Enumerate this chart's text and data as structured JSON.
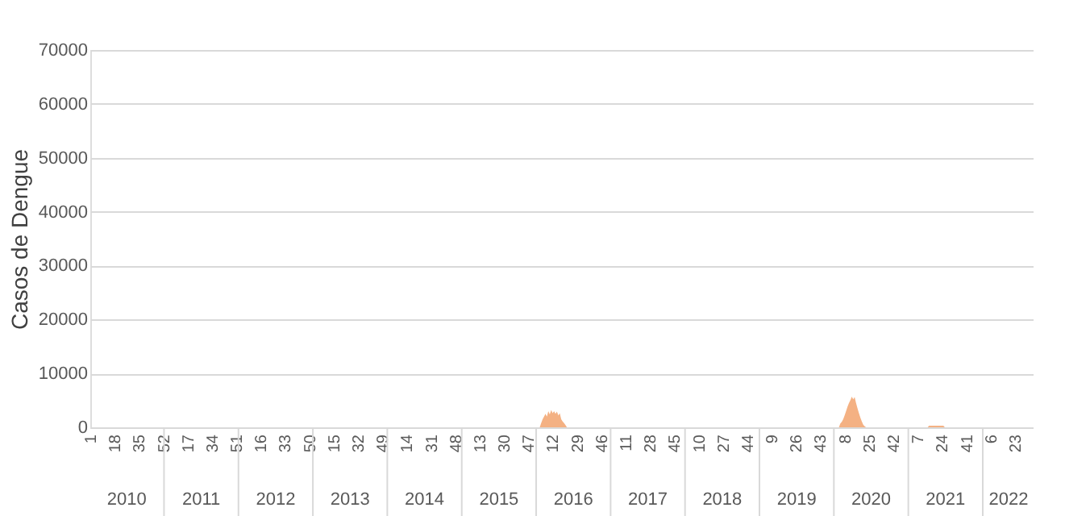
{
  "chart_data": {
    "type": "area",
    "ylabel": "Casos de Dengue",
    "categories": [
      "1",
      null,
      null,
      null,
      null,
      null,
      null,
      null,
      null,
      null,
      null,
      null,
      null,
      null,
      null,
      null,
      null,
      "18",
      null,
      null,
      null,
      null,
      null,
      null,
      null,
      null,
      null,
      null,
      null,
      null,
      null,
      null,
      null,
      null,
      "35",
      null,
      null,
      null,
      null,
      null,
      null,
      null,
      null,
      null,
      null,
      null,
      null,
      null,
      null,
      null,
      null,
      "52",
      null,
      null,
      null,
      null,
      null,
      null,
      null,
      null,
      null,
      null,
      null,
      null,
      null,
      null,
      null,
      null,
      "17",
      null,
      null,
      null,
      null,
      null,
      null,
      null,
      null,
      null,
      null,
      null,
      null,
      null,
      null,
      null,
      null,
      "34",
      null,
      null,
      null,
      null,
      null,
      null,
      null,
      null,
      null,
      null,
      null,
      null,
      null,
      null,
      null,
      null,
      "51",
      null,
      null,
      null,
      null,
      null,
      null,
      null,
      null,
      null,
      null,
      null,
      null,
      null,
      null,
      null,
      null,
      "16",
      null,
      null,
      null,
      null,
      null,
      null,
      null,
      null,
      null,
      null,
      null,
      null,
      null,
      null,
      null,
      null,
      "33",
      null,
      null,
      null,
      null,
      null,
      null,
      null,
      null,
      null,
      null,
      null,
      null,
      null,
      null,
      null,
      null,
      "50",
      null,
      null,
      null,
      null,
      null,
      null,
      null,
      null,
      null,
      null,
      null,
      null,
      null,
      null,
      null,
      null,
      "15",
      null,
      null,
      null,
      null,
      null,
      null,
      null,
      null,
      null,
      null,
      null,
      null,
      null,
      null,
      null,
      null,
      "32",
      null,
      null,
      null,
      null,
      null,
      null,
      null,
      null,
      null,
      null,
      null,
      null,
      null,
      null,
      null,
      null,
      "49",
      null,
      null,
      null,
      null,
      null,
      null,
      null,
      null,
      null,
      null,
      null,
      null,
      null,
      null,
      null,
      null,
      "14",
      null,
      null,
      null,
      null,
      null,
      null,
      null,
      null,
      null,
      null,
      null,
      null,
      null,
      null,
      null,
      null,
      "31",
      null,
      null,
      null,
      null,
      null,
      null,
      null,
      null,
      null,
      null,
      null,
      null,
      null,
      null,
      null,
      null,
      "48",
      null,
      null,
      null,
      null,
      null,
      null,
      null,
      null,
      null,
      null,
      null,
      null,
      null,
      null,
      null,
      null,
      "13",
      null,
      null,
      null,
      null,
      null,
      null,
      null,
      null,
      null,
      null,
      null,
      null,
      null,
      null,
      null,
      null,
      "30",
      null,
      null,
      null,
      null,
      null,
      null,
      null,
      null,
      null,
      null,
      null,
      null,
      null,
      null,
      null,
      null,
      "47",
      null,
      null,
      null,
      null,
      null,
      null,
      null,
      null,
      null,
      null,
      null,
      null,
      null,
      null,
      null,
      null,
      "12",
      null,
      null,
      null,
      null,
      null,
      null,
      null,
      null,
      null,
      null,
      null,
      null,
      null,
      null,
      null,
      null,
      "29",
      null,
      null,
      null,
      null,
      null,
      null,
      null,
      null,
      null,
      null,
      null,
      null,
      null,
      null,
      null,
      null,
      "46",
      null,
      null,
      null,
      null,
      null,
      null,
      null,
      null,
      null,
      null,
      null,
      null,
      null,
      null,
      null,
      null,
      "11",
      null,
      null,
      null,
      null,
      null,
      null,
      null,
      null,
      null,
      null,
      null,
      null,
      null,
      null,
      null,
      null,
      "28",
      null,
      null,
      null,
      null,
      null,
      null,
      null,
      null,
      null,
      null,
      null,
      null,
      null,
      null,
      null,
      null,
      "45",
      null,
      null,
      null,
      null,
      null,
      null,
      null,
      null,
      null,
      null,
      null,
      null,
      null,
      null,
      null,
      null,
      "10",
      null,
      null,
      null,
      null,
      null,
      null,
      null,
      null,
      null,
      null,
      null,
      null,
      null,
      null,
      null,
      null,
      "27",
      null,
      null,
      null,
      null,
      null,
      null,
      null,
      null,
      null,
      null,
      null,
      null,
      null,
      null,
      null,
      null,
      "44",
      null,
      null,
      null,
      null,
      null,
      null,
      null,
      null,
      null,
      null,
      null,
      null,
      null,
      null,
      null,
      null,
      "9",
      null,
      null,
      null,
      null,
      null,
      null,
      null,
      null,
      null,
      null,
      null,
      null,
      null,
      null,
      null,
      null,
      "26",
      null,
      null,
      null,
      null,
      null,
      null,
      null,
      null,
      null,
      null,
      null,
      null,
      null,
      null,
      null,
      null,
      "43",
      null,
      null,
      null,
      null,
      null,
      null,
      null,
      null,
      null,
      null,
      null,
      null,
      null,
      null,
      null,
      null,
      "8",
      null,
      null,
      null,
      null,
      null,
      null,
      null,
      null,
      null,
      null,
      null,
      null,
      null,
      null,
      null,
      null,
      "25",
      null,
      null,
      null,
      null,
      null,
      null,
      null,
      null,
      null,
      null,
      null,
      null,
      null,
      null,
      null,
      null,
      "42",
      null,
      null,
      null,
      null,
      null,
      null,
      null,
      null,
      null,
      null,
      null,
      null,
      null,
      null,
      null,
      null,
      "7",
      null,
      null,
      null,
      null,
      null,
      null,
      null,
      null,
      null,
      null,
      null,
      null,
      null,
      null,
      null,
      null,
      "24",
      null,
      null,
      null,
      null,
      null,
      null,
      null,
      null,
      null,
      null,
      null,
      null,
      null,
      null,
      null,
      null,
      "41",
      null,
      null,
      null,
      null,
      null,
      null,
      null,
      null,
      null,
      null,
      null,
      null,
      null,
      null,
      null,
      null,
      "6",
      null,
      null,
      null,
      null,
      null,
      null,
      null,
      null,
      null,
      null,
      null,
      null,
      null,
      null,
      null,
      null,
      "23",
      null,
      null,
      null,
      null,
      null,
      null,
      null,
      null,
      null,
      null,
      null,
      null,
      null
    ],
    "series": [
      {
        "color": "#f4b183",
        "values": [
          0,
          0,
          0,
          0,
          0,
          0,
          0,
          0,
          0,
          0,
          0,
          0,
          0,
          0,
          0,
          0,
          0,
          0,
          0,
          0,
          0,
          0,
          0,
          0,
          0,
          0,
          0,
          0,
          0,
          0,
          0,
          0,
          0,
          0,
          0,
          0,
          0,
          0,
          0,
          0,
          0,
          0,
          0,
          0,
          0,
          0,
          0,
          0,
          0,
          0,
          0,
          0,
          0,
          0,
          0,
          0,
          0,
          0,
          0,
          0,
          0,
          0,
          0,
          0,
          0,
          0,
          0,
          0,
          0,
          0,
          0,
          0,
          0,
          0,
          0,
          0,
          0,
          0,
          0,
          0,
          0,
          0,
          0,
          0,
          0,
          0,
          0,
          0,
          0,
          0,
          0,
          0,
          0,
          0,
          0,
          0,
          0,
          0,
          0,
          0,
          0,
          0,
          0,
          0,
          0,
          0,
          0,
          0,
          0,
          0,
          0,
          0,
          0,
          0,
          0,
          0,
          0,
          0,
          0,
          0,
          0,
          0,
          0,
          0,
          0,
          0,
          0,
          0,
          0,
          0,
          0,
          0,
          0,
          0,
          0,
          0,
          0,
          0,
          0,
          0,
          0,
          0,
          0,
          0,
          0,
          0,
          0,
          0,
          0,
          0,
          0,
          0,
          0,
          0,
          0,
          0,
          0,
          0,
          0,
          0,
          0,
          0,
          0,
          0,
          0,
          0,
          0,
          0,
          0,
          0,
          0,
          0,
          0,
          0,
          0,
          0,
          0,
          0,
          0,
          0,
          0,
          0,
          0,
          0,
          0,
          0,
          0,
          0,
          0,
          0,
          0,
          0,
          0,
          0,
          0,
          0,
          0,
          0,
          0,
          0,
          0,
          0,
          0,
          0,
          0,
          0,
          0,
          0,
          0,
          0,
          0,
          0,
          0,
          0,
          0,
          0,
          0,
          0,
          0,
          0,
          0,
          0,
          0,
          0,
          0,
          0,
          0,
          0,
          0,
          0,
          0,
          0,
          0,
          0,
          0,
          0,
          0,
          0,
          0,
          0,
          0,
          0,
          0,
          0,
          0,
          0,
          0,
          0,
          0,
          0,
          0,
          0,
          0,
          0,
          0,
          0,
          0,
          0,
          0,
          0,
          0,
          0,
          0,
          0,
          0,
          0,
          0,
          0,
          0,
          0,
          0,
          0,
          0,
          0,
          0,
          0,
          0,
          0,
          0,
          0,
          0,
          0,
          0,
          0,
          0,
          0,
          0,
          0,
          0,
          0,
          0,
          0,
          0,
          0,
          0,
          0,
          0,
          0,
          0,
          0,
          0,
          0,
          0,
          0,
          0,
          0,
          0,
          0,
          0,
          0,
          0,
          0,
          0,
          0,
          0,
          800,
          1500,
          2000,
          2500,
          2000,
          3000,
          2400,
          3200,
          2600,
          3000,
          2500,
          2900,
          2200,
          2600,
          1500,
          1100,
          800,
          400,
          0,
          0,
          0,
          0,
          0,
          0,
          0,
          0,
          0,
          0,
          0,
          0,
          0,
          0,
          0,
          0,
          0,
          0,
          0,
          0,
          0,
          0,
          0,
          0,
          0,
          0,
          0,
          0,
          0,
          0,
          0,
          0,
          0,
          0,
          0,
          0,
          0,
          0,
          0,
          0,
          0,
          0,
          0,
          0,
          0,
          0,
          0,
          0,
          0,
          0,
          0,
          0,
          0,
          0,
          0,
          0,
          0,
          0,
          0,
          0,
          0,
          0,
          0,
          0,
          0,
          0,
          0,
          0,
          0,
          0,
          0,
          0,
          0,
          0,
          0,
          0,
          0,
          0,
          0,
          0,
          0,
          0,
          0,
          0,
          0,
          0,
          0,
          0,
          0,
          0,
          0,
          0,
          0,
          0,
          0,
          0,
          0,
          0,
          0,
          0,
          0,
          0,
          0,
          0,
          0,
          0,
          0,
          0,
          0,
          0,
          0,
          0,
          0,
          0,
          0,
          0,
          0,
          0,
          0,
          0,
          0,
          0,
          0,
          0,
          0,
          0,
          0,
          0,
          0,
          0,
          0,
          0,
          0,
          0,
          0,
          0,
          0,
          0,
          0,
          0,
          0,
          0,
          0,
          0,
          0,
          0,
          0,
          0,
          0,
          0,
          0,
          0,
          0,
          0,
          0,
          0,
          0,
          0,
          0,
          0,
          0,
          0,
          0,
          0,
          0,
          0,
          0,
          0,
          0,
          0,
          0,
          0,
          0,
          0,
          0,
          0,
          0,
          0,
          0,
          0,
          0,
          0,
          0,
          0,
          0,
          0,
          0,
          0,
          0,
          0,
          0,
          700,
          1000,
          1500,
          2200,
          3000,
          3800,
          4500,
          5000,
          5700,
          5200,
          5600,
          4500,
          3500,
          2600,
          1800,
          1100,
          500,
          200,
          0,
          0,
          0,
          0,
          0,
          0,
          0,
          0,
          0,
          0,
          0,
          0,
          0,
          0,
          0,
          0,
          0,
          0,
          0,
          0,
          0,
          0,
          0,
          0,
          0,
          0,
          0,
          0,
          0,
          0,
          0,
          0,
          0,
          0,
          0,
          0,
          0,
          0,
          0,
          0,
          0,
          0,
          0,
          0,
          300,
          300,
          300,
          300,
          300,
          300,
          300,
          300,
          300,
          300,
          300,
          0,
          0,
          0,
          0,
          0,
          0,
          0,
          0,
          0,
          0,
          0,
          0,
          0,
          0,
          0,
          0,
          0,
          0,
          0,
          0,
          0,
          0,
          0,
          0,
          0,
          0,
          0,
          0,
          0,
          0,
          0,
          0,
          0,
          0,
          0,
          0,
          0,
          0,
          0,
          0,
          0,
          0,
          0,
          0,
          0,
          0,
          0,
          0,
          0,
          0,
          0,
          0,
          0,
          0,
          0,
          0,
          0,
          0,
          0,
          0,
          0,
          0,
          0
        ]
      }
    ],
    "ylim": [
      0,
      70000
    ],
    "yticks": [
      0,
      10000,
      20000,
      30000,
      40000,
      50000,
      60000,
      70000
    ],
    "grid": "y",
    "annotations": [
      "2010",
      "2011",
      "2012",
      "2013",
      "2014",
      "2015",
      "2016",
      "2017",
      "2018",
      "2019",
      "2020",
      "2021",
      "2022"
    ]
  }
}
